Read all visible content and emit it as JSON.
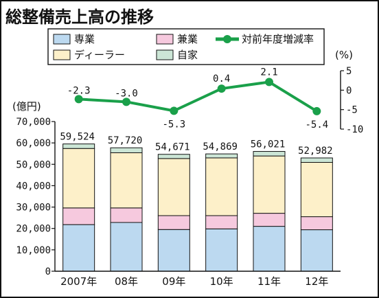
{
  "chart_data": {
    "type": "bar",
    "title": "総整備売上高の推移",
    "categories": [
      "2007年",
      "08年",
      "09年",
      "10年",
      "11年",
      "12年"
    ],
    "stacked": true,
    "ylabel": "(億円)",
    "ylim": [
      0,
      70000
    ],
    "yticks": [
      "0",
      "10,000",
      "20,000",
      "30,000",
      "40,000",
      "50,000",
      "60,000",
      "70,000"
    ],
    "totals": [
      59524,
      57720,
      54671,
      54869,
      56021,
      52982
    ],
    "total_labels": [
      "59,524",
      "57,720",
      "54,671",
      "54,869",
      "56,021",
      "52,982"
    ],
    "series": [
      {
        "name": "専業",
        "values": [
          21800,
          22800,
          19500,
          19800,
          21000,
          19400
        ],
        "color": "#bcd9f0"
      },
      {
        "name": "兼業",
        "values": [
          7800,
          6800,
          6500,
          6200,
          6100,
          6100
        ],
        "color": "#f6c9de"
      },
      {
        "name": "ディーラー",
        "values": [
          27800,
          25800,
          26700,
          27000,
          26800,
          25400
        ],
        "color": "#fdf0c9"
      },
      {
        "name": "自家",
        "values": [
          2124,
          2320,
          1971,
          1869,
          2121,
          2082
        ],
        "color": "#cce6d6"
      }
    ],
    "line": {
      "name": "対前年度増減率",
      "values": [
        -2.3,
        -3.0,
        -5.3,
        0.4,
        2.1,
        -5.4
      ],
      "labels": [
        "-2.3",
        "-3.0",
        "-5.3",
        "0.4",
        "2.1",
        "-5.4"
      ],
      "color": "#1aa04a",
      "y2label": "(%)",
      "y2lim": [
        -10,
        5
      ],
      "y2ticks": [
        "5",
        "0",
        "-5",
        "-10"
      ]
    },
    "legend_placement": "top",
    "grid": false
  }
}
